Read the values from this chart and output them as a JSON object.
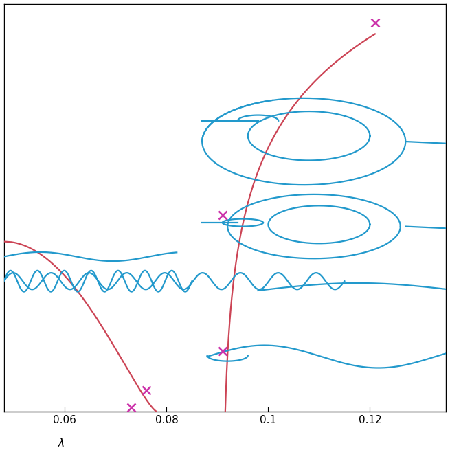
{
  "xlim": [
    0.048,
    0.135
  ],
  "ylim": [
    0.0,
    1.08
  ],
  "xlabel": "λ",
  "xlabel_fontsize": 13,
  "tick_fontsize": 11,
  "xticks": [
    0.06,
    0.08,
    0.1,
    0.12
  ],
  "background_color": "#ffffff",
  "blue_color": "#2299cc",
  "red_color": "#cc4455",
  "magenta_color": "#cc33aa",
  "figsize": [
    6.55,
    6.55
  ],
  "dpi": 100,
  "bifurcation_points": [
    [
      0.121,
      1.03
    ],
    [
      0.091,
      0.52
    ],
    [
      0.091,
      0.16
    ],
    [
      0.076,
      0.055
    ],
    [
      0.073,
      0.01
    ]
  ]
}
